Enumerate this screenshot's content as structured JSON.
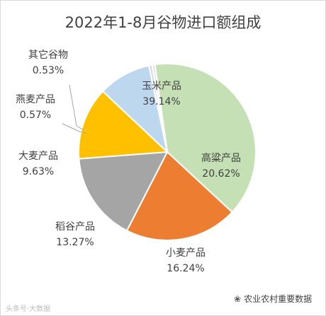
{
  "chart_data": {
    "type": "pie",
    "title": "2022年1-8月谷物进口额组成",
    "slices": [
      {
        "label": "玉米产品",
        "pct_label": "39.14%",
        "value": 39.14,
        "color": "#c5e0b4"
      },
      {
        "label": "高粱产品",
        "pct_label": "20.62%",
        "value": 20.62,
        "color": "#ed7d31"
      },
      {
        "label": "小麦产品",
        "pct_label": "16.24%",
        "value": 16.24,
        "color": "#a5a5a5"
      },
      {
        "label": "稻谷产品",
        "pct_label": "13.27%",
        "value": 13.27,
        "color": "#ffc000"
      },
      {
        "label": "大麦产品",
        "pct_label": "9.63%",
        "value": 9.63,
        "color": "#bdd7ee"
      },
      {
        "label": "燕麦产品",
        "pct_label": "0.57%",
        "value": 0.57,
        "color": "#d9d9d9"
      },
      {
        "label": "其它谷物",
        "pct_label": "0.53%",
        "value": 0.53,
        "color": "#e7e6e6"
      }
    ]
  },
  "watermark_left": "头条号·大数据",
  "watermark_right": "农业农村重要数据"
}
